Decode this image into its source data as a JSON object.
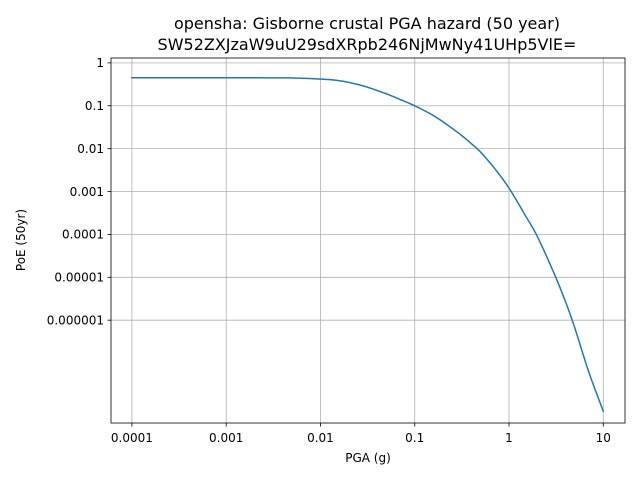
{
  "chart_data": {
    "type": "line",
    "title_line1": "opensha: Gisborne crustal PGA hazard (50 year)",
    "title_line2": "SW52ZXJzaW9uU29sdXRpb246NjMwNy41UHp5VlE=",
    "xlabel": "PGA (g)",
    "ylabel": "PoE (50yr)",
    "xscale": "log",
    "yscale": "log",
    "xlim": [
      6e-05,
      17
    ],
    "ylim": [
      4e-09,
      1.3
    ],
    "grid": true,
    "x_ticks": [
      {
        "value": 0.0001,
        "label": "0.0001"
      },
      {
        "value": 0.001,
        "label": "0.001"
      },
      {
        "value": 0.01,
        "label": "0.01"
      },
      {
        "value": 0.1,
        "label": "0.1"
      },
      {
        "value": 1,
        "label": "1"
      },
      {
        "value": 10,
        "label": "10"
      }
    ],
    "y_ticks": [
      {
        "value": 1,
        "label": "1"
      },
      {
        "value": 0.1,
        "label": "0.1"
      },
      {
        "value": 0.01,
        "label": "0.01"
      },
      {
        "value": 0.001,
        "label": "0.001"
      },
      {
        "value": 0.0001,
        "label": "0.0001"
      },
      {
        "value": 1e-05,
        "label": "0.00001"
      },
      {
        "value": 1e-06,
        "label": "0.000001"
      }
    ],
    "series": [
      {
        "color": "#1f77b4",
        "x": [
          0.0001,
          0.0003,
          0.001,
          0.003,
          0.005,
          0.01,
          0.015,
          0.02,
          0.03,
          0.05,
          0.07,
          0.1,
          0.15,
          0.2,
          0.3,
          0.4,
          0.5,
          0.7,
          1.0,
          1.5,
          2.0,
          3.0,
          4.0,
          5.0,
          7.0,
          10.0
        ],
        "y": [
          0.45,
          0.45,
          0.45,
          0.448,
          0.445,
          0.42,
          0.39,
          0.35,
          0.28,
          0.19,
          0.14,
          0.1,
          0.063,
          0.042,
          0.022,
          0.013,
          0.0083,
          0.0035,
          0.0012,
          0.00027,
          8.9e-05,
          1.25e-05,
          2.6e-06,
          6.5e-07,
          6.3e-08,
          7.5e-09
        ]
      }
    ]
  }
}
